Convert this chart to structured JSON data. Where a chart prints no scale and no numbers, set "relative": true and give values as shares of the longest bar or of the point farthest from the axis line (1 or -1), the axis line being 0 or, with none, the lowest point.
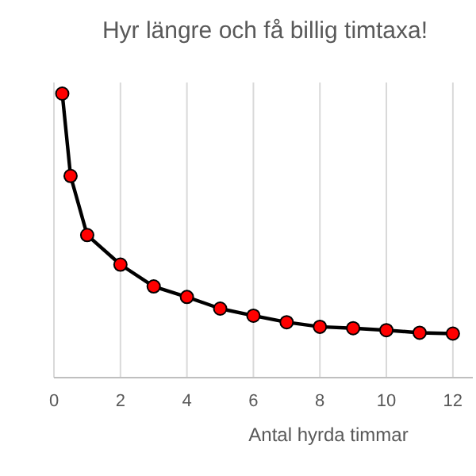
{
  "chart_data": {
    "type": "line",
    "title": "Hyr längre och få billig timtaxa!",
    "xlabel": "Antal hyrda timmar",
    "relative": true,
    "x": [
      0.25,
      0.5,
      1,
      2,
      3,
      4,
      5,
      6,
      7,
      8,
      9,
      10,
      11,
      12
    ],
    "series": [
      {
        "color": "#000000",
        "values": [
          1,
          0.71,
          0.502,
          0.398,
          0.321,
          0.284,
          0.243,
          0.218,
          0.195,
          0.179,
          0.174,
          0.167,
          0.158,
          0.155
        ]
      }
    ],
    "xlim": [
      0,
      12.6
    ],
    "xticks": [
      0,
      2,
      4,
      6,
      8,
      10,
      12
    ],
    "grid": true,
    "marker": "circle",
    "line_style": "solid"
  }
}
